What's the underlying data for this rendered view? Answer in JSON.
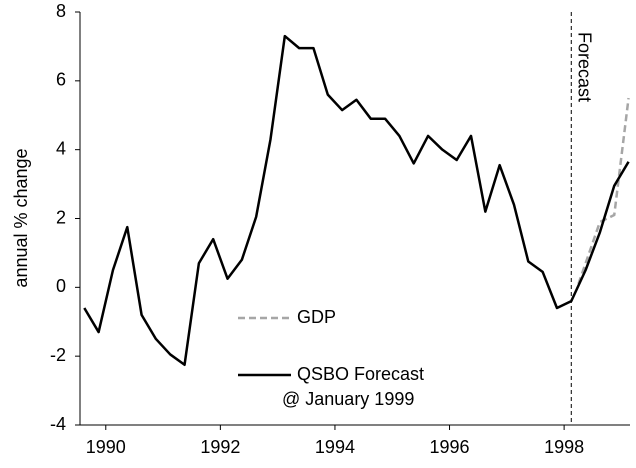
{
  "chart_data": {
    "type": "line",
    "y_label": "annual % change",
    "xlim": [
      1989.55,
      1999.15
    ],
    "xticks": [
      1990,
      1992,
      1994,
      1996,
      1998
    ],
    "ylim": [
      -4,
      8
    ],
    "yticks": [
      -4,
      -2,
      0,
      2,
      4,
      6,
      8
    ],
    "grid": false,
    "annotations": [
      {
        "text": "Forecast",
        "x": 1998.125
      }
    ],
    "series": [
      {
        "name": "GDP",
        "color": "#a6a6a6",
        "dash": true,
        "x": [
          1998.25,
          1998.625,
          1998.875,
          1999.125
        ],
        "values": [
          0.1,
          1.9,
          2.1,
          5.5
        ]
      },
      {
        "name": "QSBO Forecast",
        "name_note": "@ January 1999",
        "color": "#000000",
        "dash": false,
        "x": [
          1989.625,
          1989.875,
          1990.125,
          1990.375,
          1990.625,
          1990.875,
          1991.125,
          1991.375,
          1991.625,
          1991.875,
          1992.125,
          1992.375,
          1992.625,
          1992.875,
          1993.125,
          1993.375,
          1993.625,
          1993.875,
          1994.125,
          1994.375,
          1994.625,
          1994.875,
          1995.125,
          1995.375,
          1995.625,
          1995.875,
          1996.125,
          1996.375,
          1996.625,
          1996.875,
          1997.125,
          1997.375,
          1997.625,
          1997.875,
          1998.125,
          1998.375,
          1998.625,
          1998.875,
          1999.125
        ],
        "values": [
          -0.6,
          -1.3,
          0.5,
          1.75,
          -0.8,
          -1.5,
          -1.95,
          -2.25,
          0.7,
          1.4,
          0.25,
          0.8,
          2.05,
          4.3,
          7.3,
          6.95,
          6.95,
          5.6,
          5.15,
          5.45,
          4.9,
          4.9,
          4.4,
          3.6,
          4.4,
          4.0,
          3.7,
          4.4,
          2.2,
          3.55,
          2.4,
          0.75,
          0.45,
          -0.6,
          -0.4,
          0.5,
          1.6,
          2.95,
          3.65
        ]
      }
    ]
  }
}
